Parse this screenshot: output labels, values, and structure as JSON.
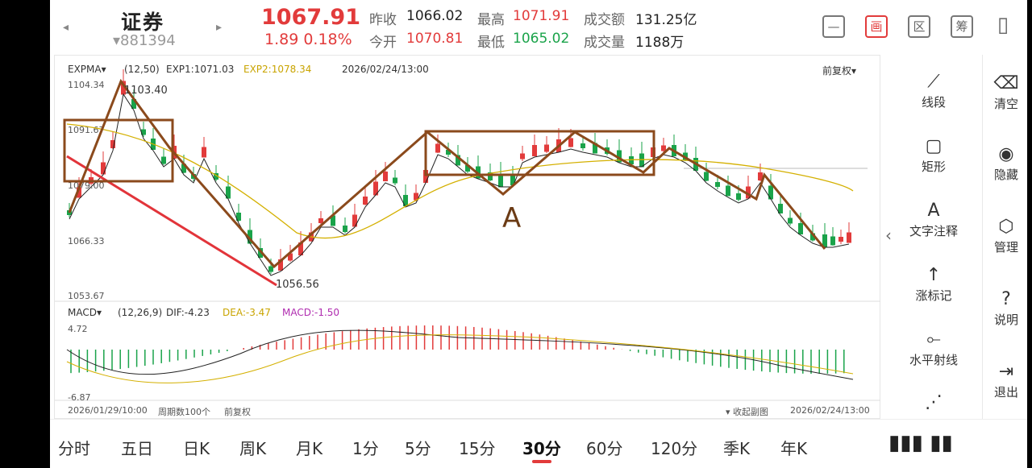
{
  "header": {
    "prev_arrow": "◂",
    "next_arrow": "▸",
    "name": "证券",
    "code": "▾881394",
    "price": "1067.91",
    "change": "1.89  0.18%",
    "quotes": [
      {
        "label": "昨收",
        "value": "1066.02",
        "color": "dark"
      },
      {
        "label": "最高",
        "value": "1071.91",
        "color": "red"
      },
      {
        "label": "成交额",
        "value": "131.25亿",
        "color": "dark"
      },
      {
        "label": "今开",
        "value": "1070.81",
        "color": "red"
      },
      {
        "label": "最低",
        "value": "1065.02",
        "color": "green"
      },
      {
        "label": "成交量",
        "value": "1188万",
        "color": "dark"
      }
    ],
    "tools": [
      {
        "name": "minimize-tool-button",
        "glyph": "—"
      },
      {
        "name": "draw-tool-button",
        "glyph": "画"
      },
      {
        "name": "range-tool-button",
        "glyph": "区"
      },
      {
        "name": "chips-tool-button",
        "glyph": "筹"
      },
      {
        "name": "device-switch-button",
        "glyph": "▯"
      }
    ]
  },
  "indicator": {
    "name": "EXPMA▾",
    "params": "(12,50)",
    "exp1": "EXP1:1071.03",
    "exp2": "EXP2:1078.34",
    "datetime": "2026/02/24/13:00",
    "adjust": "前复权▾"
  },
  "price_axis": [
    "1104.34",
    "1091.67",
    "1079.00",
    "1066.33",
    "1053.67"
  ],
  "annotations": {
    "high": "1103.40",
    "low": "1056.56",
    "mark": "A"
  },
  "macd": {
    "name": "MACD▾",
    "params": "(12,26,9)",
    "dif": "DIF:-4.23",
    "dea": "DEA:-3.47",
    "macd": "MACD:-1.50",
    "top": "4.72",
    "bottom": "-6.87"
  },
  "footer": {
    "start": "2026/01/29/10:00",
    "period": "周期数100个",
    "adjust": "前复权",
    "collapse": "▾ 收起副图",
    "end": "2026/02/24/13:00"
  },
  "right_tools": [
    {
      "label": "线段",
      "icon": "⟋"
    },
    {
      "label": "矩形",
      "icon": "▢"
    },
    {
      "label": "文字注释",
      "icon": "A"
    },
    {
      "label": "涨标记",
      "icon": "↑"
    },
    {
      "label": "水平射线",
      "icon": "⟜"
    }
  ],
  "side_actions": [
    {
      "label": "清空",
      "icon": "⌫"
    },
    {
      "label": "隐藏",
      "icon": "◉"
    },
    {
      "label": "管理",
      "icon": "⬡"
    },
    {
      "label": "说明",
      "icon": "?"
    },
    {
      "label": "退出",
      "icon": "⇥"
    }
  ],
  "tabs": [
    "分时",
    "五日",
    "日K",
    "周K",
    "月K",
    "1分",
    "5分",
    "15分",
    "30分",
    "60分",
    "120分",
    "季K",
    "年K"
  ],
  "active_tab": "30分",
  "colors": {
    "up": "#e23b3b",
    "down": "#1aa34a",
    "exp1": "#222222",
    "exp2": "#d4b000",
    "annotation": "#8b4a1c",
    "trend": "#e2343a"
  }
}
